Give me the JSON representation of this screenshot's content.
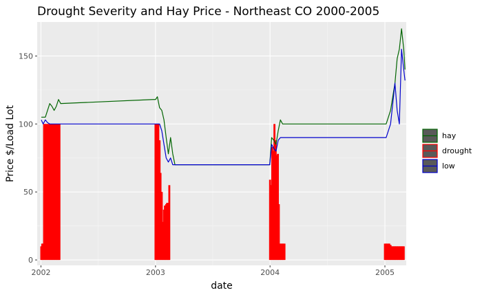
{
  "chart_data": {
    "type": "line",
    "title": "Drought Severity and Hay Price - Northeast CO 2000-2005",
    "xlabel": "date",
    "ylabel": "Price $/Load Lot",
    "xlim": [
      "2001-12-20",
      "2005-03-10"
    ],
    "ylim": [
      -4,
      175
    ],
    "grid": true,
    "legend_position": "right",
    "x_ticks": [
      {
        "label": "2002",
        "date": "2002-01-01"
      },
      {
        "label": "2003",
        "date": "2003-01-01"
      },
      {
        "label": "2004",
        "date": "2004-01-01"
      },
      {
        "label": "2005",
        "date": "2005-01-01"
      }
    ],
    "y_ticks": [
      0,
      50,
      100,
      150
    ],
    "colors": {
      "hay": "#006400",
      "drought": "#ff0000",
      "low": "#0000cd",
      "panel": "#ebebeb",
      "grid_major": "#ffffff",
      "legend_key_fill": "#595959"
    },
    "series": [
      {
        "name": "hay",
        "mark": "line",
        "points": [
          [
            "2002-01-02",
            105
          ],
          [
            "2002-01-15",
            105
          ],
          [
            "2002-01-22",
            110
          ],
          [
            "2002-01-29",
            115
          ],
          [
            "2002-02-05",
            113
          ],
          [
            "2002-02-12",
            110
          ],
          [
            "2002-02-19",
            113
          ],
          [
            "2002-02-26",
            118
          ],
          [
            "2002-03-05",
            115
          ],
          [
            "2002-12-24",
            118
          ],
          [
            "2003-01-01",
            118
          ],
          [
            "2003-01-07",
            120
          ],
          [
            "2003-01-14",
            112
          ],
          [
            "2003-01-21",
            110
          ],
          [
            "2003-01-28",
            103
          ],
          [
            "2003-02-04",
            90
          ],
          [
            "2003-02-11",
            78
          ],
          [
            "2003-02-18",
            90
          ],
          [
            "2003-02-25",
            78
          ],
          [
            "2003-03-04",
            70
          ],
          [
            "2003-12-31",
            70
          ],
          [
            "2004-01-06",
            90
          ],
          [
            "2004-01-13",
            88
          ],
          [
            "2004-01-20",
            85
          ],
          [
            "2004-01-27",
            95
          ],
          [
            "2004-02-03",
            103
          ],
          [
            "2004-02-10",
            100
          ],
          [
            "2005-01-05",
            100
          ],
          [
            "2005-01-19",
            110
          ],
          [
            "2005-02-02",
            130
          ],
          [
            "2005-02-09",
            148
          ],
          [
            "2005-02-16",
            155
          ],
          [
            "2005-02-23",
            170
          ],
          [
            "2005-03-02",
            155
          ],
          [
            "2005-03-06",
            140
          ]
        ]
      },
      {
        "name": "low",
        "mark": "line",
        "points": [
          [
            "2002-01-02",
            103
          ],
          [
            "2002-01-08",
            100
          ],
          [
            "2002-01-15",
            103
          ],
          [
            "2002-01-22",
            101
          ],
          [
            "2002-01-29",
            100
          ],
          [
            "2003-01-01",
            100
          ],
          [
            "2003-01-07",
            100
          ],
          [
            "2003-01-14",
            100
          ],
          [
            "2003-01-21",
            95
          ],
          [
            "2003-01-28",
            85
          ],
          [
            "2003-02-04",
            75
          ],
          [
            "2003-02-11",
            72
          ],
          [
            "2003-02-18",
            75
          ],
          [
            "2003-02-25",
            70
          ],
          [
            "2003-12-31",
            70
          ],
          [
            "2004-01-06",
            85
          ],
          [
            "2004-01-13",
            82
          ],
          [
            "2004-01-20",
            80
          ],
          [
            "2004-01-27",
            88
          ],
          [
            "2004-02-03",
            90
          ],
          [
            "2004-02-10",
            90
          ],
          [
            "2005-01-05",
            90
          ],
          [
            "2005-01-19",
            100
          ],
          [
            "2005-02-02",
            130
          ],
          [
            "2005-02-09",
            110
          ],
          [
            "2005-02-16",
            100
          ],
          [
            "2005-02-23",
            155
          ],
          [
            "2005-03-02",
            140
          ],
          [
            "2005-03-06",
            132
          ]
        ]
      },
      {
        "name": "drought",
        "mark": "bar",
        "points": [
          [
            "2002-01-02",
            10
          ],
          [
            "2002-01-05",
            12
          ],
          [
            "2002-01-08",
            12
          ],
          [
            "2002-01-11",
            100
          ],
          [
            "2002-01-15",
            100
          ],
          [
            "2002-01-18",
            100
          ],
          [
            "2002-01-22",
            100
          ],
          [
            "2002-01-25",
            100
          ],
          [
            "2002-01-29",
            100
          ],
          [
            "2002-02-01",
            100
          ],
          [
            "2002-02-05",
            100
          ],
          [
            "2002-02-08",
            100
          ],
          [
            "2002-02-12",
            100
          ],
          [
            "2002-02-15",
            100
          ],
          [
            "2002-02-19",
            100
          ],
          [
            "2002-02-22",
            100
          ],
          [
            "2002-02-26",
            100
          ],
          [
            "2002-03-01",
            100
          ],
          [
            "2003-01-01",
            100
          ],
          [
            "2003-01-04",
            100
          ],
          [
            "2003-01-07",
            100
          ],
          [
            "2003-01-10",
            100
          ],
          [
            "2003-01-14",
            88
          ],
          [
            "2003-01-17",
            64
          ],
          [
            "2003-01-21",
            50
          ],
          [
            "2003-01-24",
            28
          ],
          [
            "2003-01-28",
            37
          ],
          [
            "2003-01-31",
            40
          ],
          [
            "2003-02-04",
            41
          ],
          [
            "2003-02-07",
            42
          ],
          [
            "2003-02-11",
            42
          ],
          [
            "2003-02-14",
            55
          ],
          [
            "2004-01-01",
            59
          ],
          [
            "2004-01-05",
            55
          ],
          [
            "2004-01-08",
            83
          ],
          [
            "2004-01-12",
            80
          ],
          [
            "2004-01-15",
            100
          ],
          [
            "2004-01-19",
            88
          ],
          [
            "2004-01-22",
            77
          ],
          [
            "2004-01-26",
            78
          ],
          [
            "2004-01-29",
            41
          ],
          [
            "2004-02-02",
            12
          ],
          [
            "2004-02-05",
            12
          ],
          [
            "2004-02-09",
            12
          ],
          [
            "2004-02-12",
            12
          ],
          [
            "2004-02-16",
            12
          ],
          [
            "2005-01-01",
            12
          ],
          [
            "2005-01-05",
            12
          ],
          [
            "2005-01-08",
            12
          ],
          [
            "2005-01-12",
            12
          ],
          [
            "2005-01-15",
            12
          ],
          [
            "2005-01-19",
            11
          ],
          [
            "2005-01-22",
            10
          ],
          [
            "2005-01-26",
            10
          ],
          [
            "2005-01-29",
            10
          ],
          [
            "2005-02-02",
            10
          ],
          [
            "2005-02-05",
            10
          ],
          [
            "2005-02-09",
            10
          ],
          [
            "2005-02-12",
            10
          ],
          [
            "2005-02-16",
            10
          ],
          [
            "2005-02-19",
            10
          ],
          [
            "2005-02-23",
            10
          ],
          [
            "2005-02-26",
            10
          ],
          [
            "2005-03-02",
            10
          ]
        ]
      }
    ],
    "legend": [
      {
        "label": "hay",
        "series": "hay"
      },
      {
        "label": "drought",
        "series": "drought"
      },
      {
        "label": "low",
        "series": "low"
      }
    ]
  }
}
